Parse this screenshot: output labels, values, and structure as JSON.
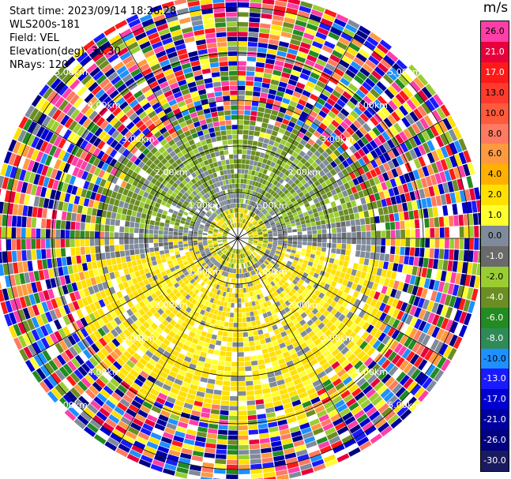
{
  "header": {
    "start_time": "Start time: 2023/09/14 18:26:28",
    "instrument": "WLS200s-181",
    "field": "Field: VEL",
    "elevation": "Elevation(deg): 35.30",
    "nrays": "NRays: 120"
  },
  "range_rings": [
    {
      "label": "1.00km",
      "km": 1
    },
    {
      "label": "2.00km",
      "km": 2
    },
    {
      "label": "3.00km",
      "km": 3
    },
    {
      "label": "4.00km",
      "km": 4
    },
    {
      "label": "5.00km",
      "km": 5
    }
  ],
  "colorbar": {
    "unit": "m/s",
    "levels": [
      {
        "label": "26.0",
        "color": "#ff3ea8"
      },
      {
        "label": "21.0",
        "color": "#e8003c"
      },
      {
        "label": "17.0",
        "color": "#ff1a1a"
      },
      {
        "label": "13.0",
        "color": "#ff3b2e"
      },
      {
        "label": "10.0",
        "color": "#ff5a3c"
      },
      {
        "label": "8.0",
        "color": "#ff7a60"
      },
      {
        "label": "6.0",
        "color": "#ff9a40"
      },
      {
        "label": "4.0",
        "color": "#ffb000"
      },
      {
        "label": "2.0",
        "color": "#ffe000"
      },
      {
        "label": "1.0",
        "color": "#ffff30"
      },
      {
        "label": "0.0",
        "color": "#7f8b9a"
      },
      {
        "label": "-1.0",
        "color": "#6a6a6a"
      },
      {
        "label": "-2.0",
        "color": "#9acd32"
      },
      {
        "label": "-4.0",
        "color": "#6b8e23"
      },
      {
        "label": "-6.0",
        "color": "#228b22"
      },
      {
        "label": "-8.0",
        "color": "#2e8b57"
      },
      {
        "label": "-10.0",
        "color": "#1e90ff"
      },
      {
        "label": "-13.0",
        "color": "#1a1aff"
      },
      {
        "label": "-17.0",
        "color": "#0000d0"
      },
      {
        "label": "-21.0",
        "color": "#0000a0"
      },
      {
        "label": "-26.0",
        "color": "#000080"
      },
      {
        "label": "-30.0",
        "color": "#1a1a60"
      }
    ]
  }
}
